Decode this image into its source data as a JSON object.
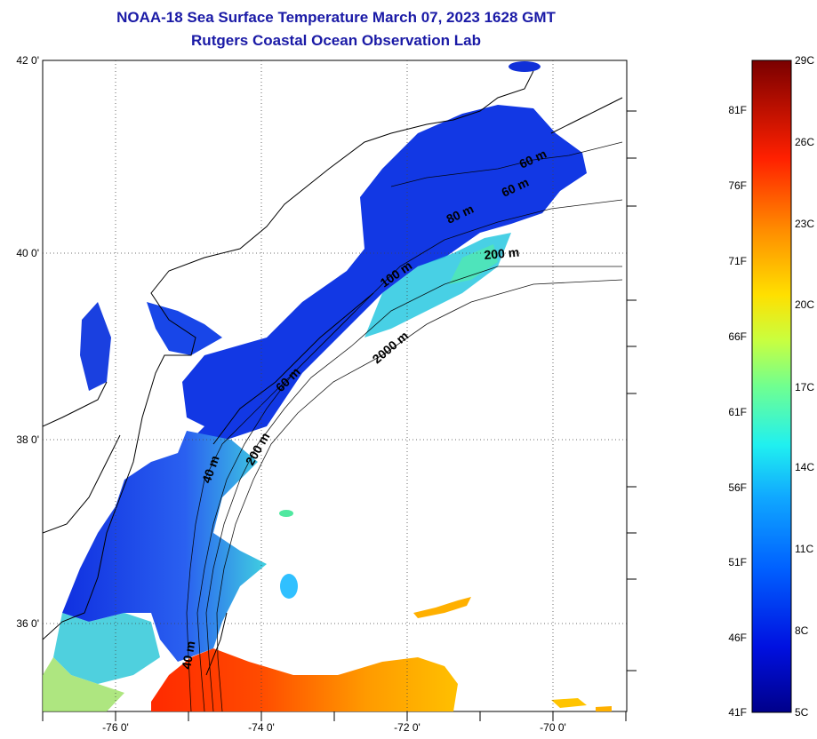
{
  "title_line1": "NOAA-18 Sea Surface Temperature March 07, 2023 1628 GMT",
  "title_line2": "Rutgers Coastal Ocean Observation Lab",
  "map": {
    "lat_labels": [
      "42 0'",
      "40 0'",
      "38 0'",
      "36 0'"
    ],
    "lon_labels": [
      "-76 0'",
      "-74 0'",
      "-72 0'",
      "-70 0'"
    ],
    "contour_labels": [
      "40 m",
      "40 m",
      "60 m",
      "60 m",
      "60 m",
      "80 m",
      "100 m",
      "200 m",
      "200 m",
      "2000 m"
    ]
  },
  "colorbar": {
    "fahrenheit_labels": [
      "81F",
      "76F",
      "71F",
      "66F",
      "61F",
      "56F",
      "51F",
      "46F",
      "41F"
    ],
    "celsius_labels": [
      "29C",
      "26C",
      "23C",
      "20C",
      "17C",
      "14C",
      "11C",
      "8C",
      "5C"
    ],
    "colors": [
      "#7f0000",
      "#c80000",
      "#ff3000",
      "#ff8a00",
      "#ffd400",
      "#d6ff30",
      "#7dff7a",
      "#30ffd0",
      "#00c8ff",
      "#0070ff",
      "#0018e6",
      "#000090"
    ]
  },
  "colors": {
    "title": "#1a1aa6",
    "land": "#ffffff",
    "coastline": "#000000",
    "cold_water": "#1a3ed8",
    "warm_water": "#e82a10"
  }
}
